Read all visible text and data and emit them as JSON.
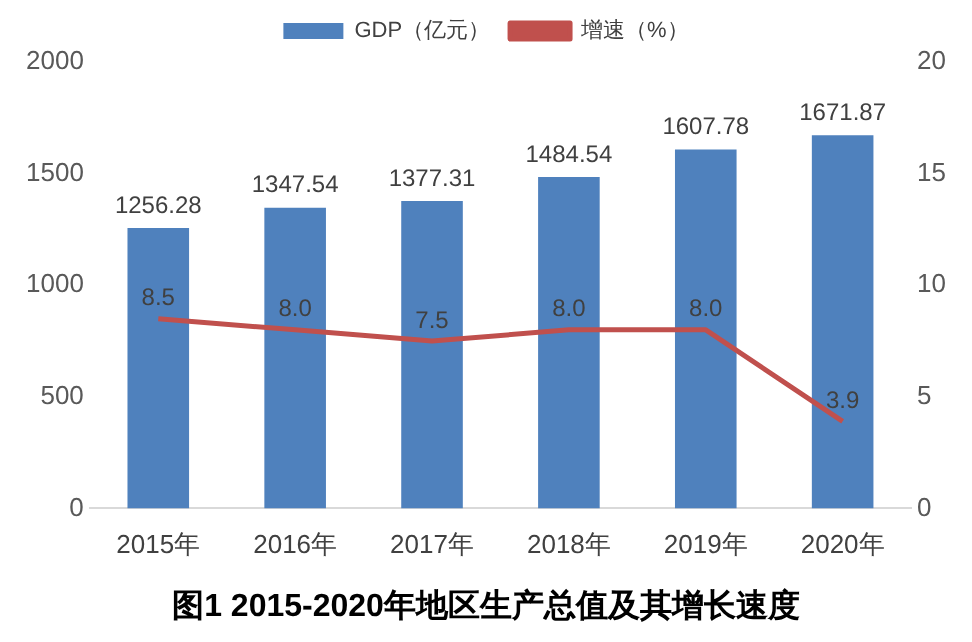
{
  "chart_data": {
    "type": "bar",
    "title": "图1 2015-2020年地区生产总值及其增长速度",
    "categories": [
      "2015年",
      "2016年",
      "2017年",
      "2018年",
      "2019年",
      "2020年"
    ],
    "series": [
      {
        "name": "GDP（亿元）",
        "color": "#4f81bd",
        "values": [
          1256.28,
          1347.54,
          1377.31,
          1484.54,
          1607.78,
          1671.87
        ]
      },
      {
        "name": "增速（%）",
        "type": "line",
        "axis": "y2",
        "color": "#c0504d",
        "values": [
          8.5,
          8.0,
          7.5,
          8.0,
          8.0,
          3.9
        ],
        "value_labels": [
          "8.5",
          "8.0",
          "7.5",
          "8.0",
          "8.0",
          "3.9"
        ]
      }
    ],
    "ylim": [
      0,
      2000
    ],
    "yticks": [
      0,
      500,
      1000,
      1500,
      2000
    ],
    "y2lim": [
      0,
      20
    ],
    "y2ticks": [
      0,
      5,
      10,
      15,
      20
    ],
    "grid": false,
    "legend": "top",
    "marker": "none",
    "line_style": "solid",
    "data_labels": true
  }
}
